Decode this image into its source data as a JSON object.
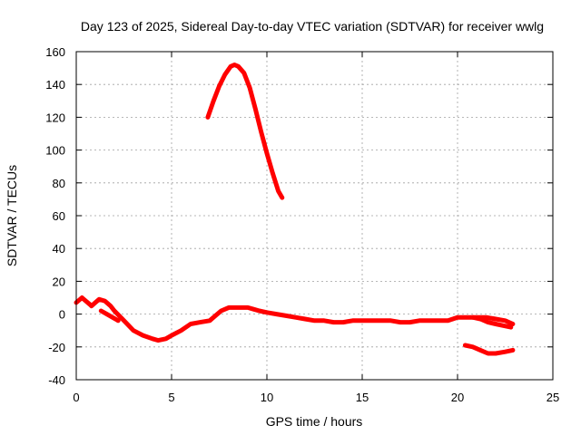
{
  "chart_data": {
    "type": "line",
    "title": "Day 123 of 2025, Sidereal Day-to-day VTEC variation (SDTVAR) for receiver wwlg",
    "xlabel": "GPS time / hours",
    "ylabel": "SDTVAR / TECUs",
    "xlim": [
      0,
      25
    ],
    "ylim": [
      -40,
      160
    ],
    "xticks": [
      0,
      5,
      10,
      15,
      20,
      25
    ],
    "yticks": [
      -40,
      -20,
      0,
      20,
      40,
      60,
      80,
      100,
      120,
      140,
      160
    ],
    "grid": true,
    "color": "#ff0000",
    "series": [
      {
        "name": "arc-baseline",
        "x": [
          0,
          0.3,
          0.5,
          0.7,
          0.8,
          1.0,
          1.2,
          1.5,
          1.8,
          2.0,
          2.5,
          3.0,
          3.5,
          4.0,
          4.3,
          4.7,
          5.0,
          5.5,
          6.0,
          6.5,
          7.0,
          7.3,
          7.6,
          8.0,
          8.5,
          9.0,
          9.3,
          9.6,
          10.0,
          10.5,
          11.0,
          11.5,
          12.0,
          12.5,
          13.0,
          13.5,
          14.0,
          14.5,
          15.0,
          15.5,
          16.0,
          16.5,
          17.0,
          17.5,
          18.0,
          18.5,
          19.0,
          19.5,
          20.0,
          20.5,
          21.0,
          21.5,
          22.0,
          22.5,
          22.9
        ],
        "y": [
          7,
          10,
          8,
          6,
          5,
          7,
          9,
          8,
          5,
          2,
          -4,
          -10,
          -13,
          -15,
          -16,
          -15,
          -13,
          -10,
          -6,
          -5,
          -4,
          -1,
          2,
          4,
          4,
          4,
          3,
          2,
          1,
          0,
          -1,
          -2,
          -3,
          -4,
          -4,
          -5,
          -5,
          -4,
          -4,
          -4,
          -4,
          -4,
          -5,
          -5,
          -4,
          -4,
          -4,
          -4,
          -2,
          -2,
          -2,
          -2,
          -3,
          -4,
          -6
        ]
      },
      {
        "name": "arc-late-upper",
        "x": [
          20.8,
          21.2,
          21.6,
          22.0,
          22.4,
          22.8
        ],
        "y": [
          -2,
          -3,
          -5,
          -6,
          -7,
          -8
        ]
      },
      {
        "name": "arc-late-lower",
        "x": [
          20.4,
          20.8,
          21.2,
          21.6,
          22.0,
          22.5,
          22.9
        ],
        "y": [
          -19,
          -20,
          -22,
          -24,
          -24,
          -23,
          -22
        ]
      },
      {
        "name": "arc-peak",
        "x": [
          6.9,
          7.2,
          7.5,
          7.8,
          8.1,
          8.3,
          8.5,
          8.8,
          9.1,
          9.4,
          9.7,
          10.0,
          10.3,
          10.6,
          10.8
        ],
        "y": [
          120,
          130,
          139,
          146,
          151,
          152,
          151,
          147,
          138,
          125,
          111,
          98,
          86,
          75,
          71
        ]
      },
      {
        "name": "arc-short",
        "x": [
          1.3,
          1.6,
          1.9,
          2.2
        ],
        "y": [
          2,
          0,
          -2,
          -4
        ]
      }
    ]
  }
}
